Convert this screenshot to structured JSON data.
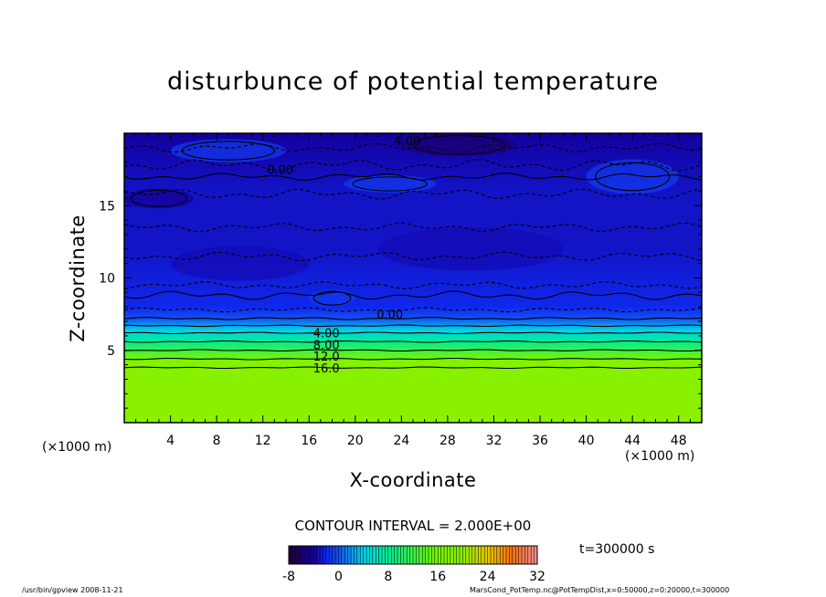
{
  "chart_data": {
    "type": "heatmap",
    "title": "disturbunce of potential temperature",
    "xlabel": "X-coordinate",
    "ylabel": "Z-coordinate",
    "x_unit": "(×1000 m)",
    "xlim": [
      0,
      50
    ],
    "ylim": [
      0,
      20
    ],
    "x_ticks": [
      4,
      8,
      12,
      16,
      20,
      24,
      28,
      32,
      36,
      40,
      44,
      48
    ],
    "y_ticks": [
      5,
      10,
      15
    ],
    "contour_interval": "CONTOUR INTERVAL = 2.000E+00",
    "contour_labels": [
      {
        "text": "4.00",
        "x": 24.5,
        "z": 19.5
      },
      {
        "text": "0.00",
        "x": 13.5,
        "z": 17.5
      },
      {
        "text": "0.00",
        "x": 23.0,
        "z": 7.5
      },
      {
        "text": "4.00",
        "x": 17.5,
        "z": 6.2
      },
      {
        "text": "8.00",
        "x": 17.5,
        "z": 5.4
      },
      {
        "text": "12.0",
        "x": 17.5,
        "z": 4.6
      },
      {
        "text": "16.0",
        "x": 17.5,
        "z": 3.8
      }
    ],
    "colorbar": {
      "min": -8,
      "max": 32,
      "ticks": [
        -8,
        0,
        8,
        16,
        24,
        32
      ]
    },
    "vertical_profile": [
      {
        "z": 0,
        "value": 20
      },
      {
        "z": 4,
        "value": 19
      },
      {
        "z": 4.4,
        "value": 16
      },
      {
        "z": 5.0,
        "value": 12
      },
      {
        "z": 5.6,
        "value": 8
      },
      {
        "z": 6.4,
        "value": 4
      },
      {
        "z": 7.2,
        "value": 0
      },
      {
        "z": 8.0,
        "value": -2
      },
      {
        "z": 12.0,
        "value": -3
      },
      {
        "z": 16.0,
        "value": -3
      },
      {
        "z": 20.0,
        "value": -4
      }
    ],
    "time_label": "t=300000 s"
  },
  "footer": {
    "left": "/usr/bin/gpview   2008-11-21",
    "right": "MarsCond_PotTemp.nc@PotTempDist,x=0:50000,z=0:20000,t=300000"
  },
  "colors": {
    "surface_layer": "#8cf000",
    "upper_layer": "#1430e6"
  }
}
